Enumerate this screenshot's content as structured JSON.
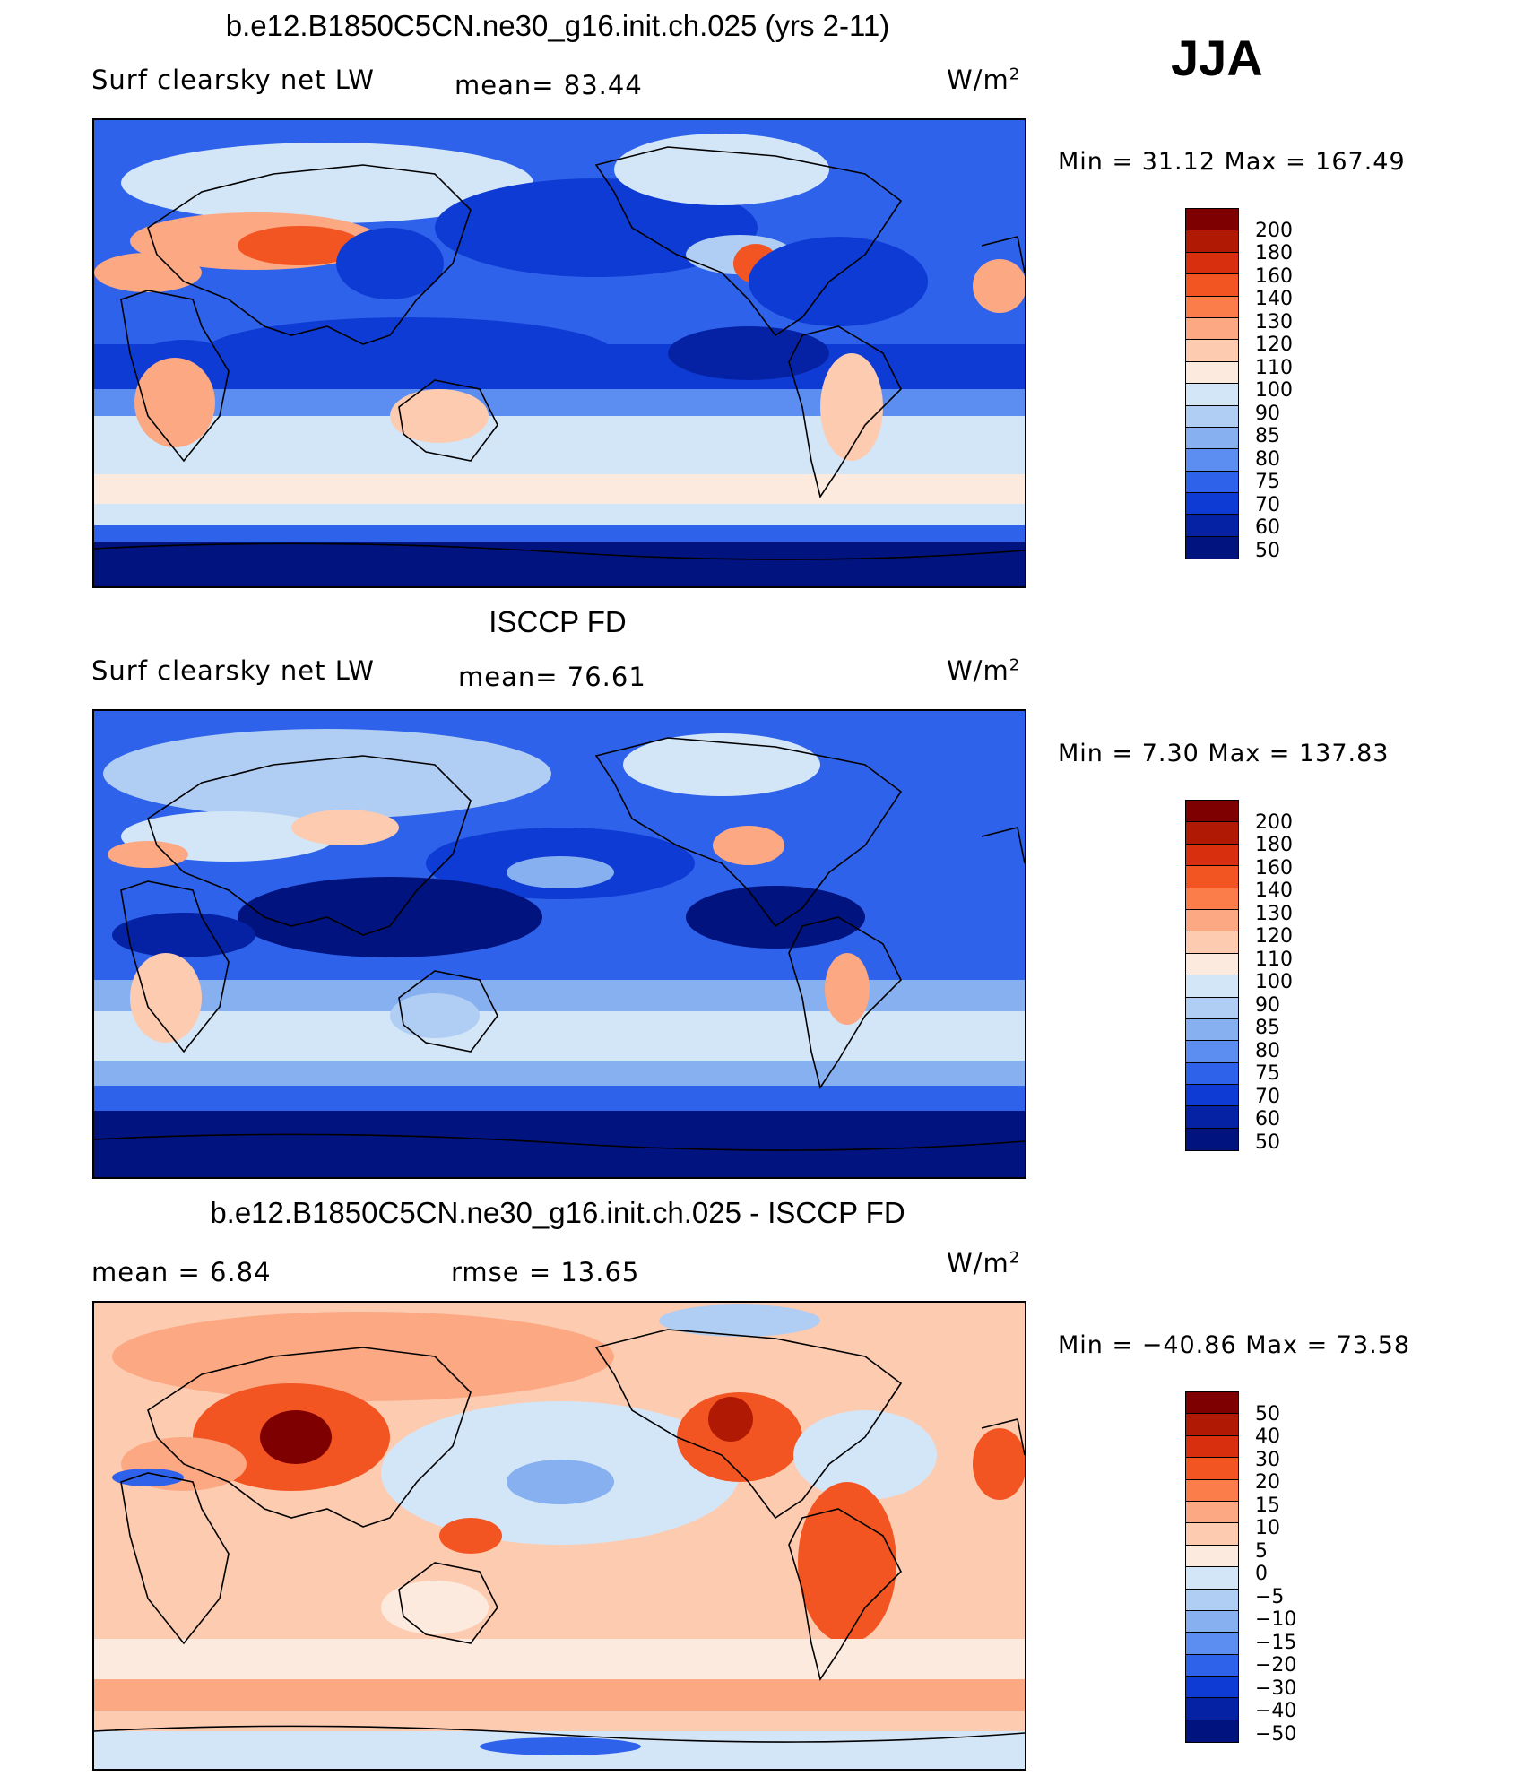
{
  "season": "JJA",
  "panels": [
    {
      "title": "b.e12.B1850C5CN.ne30_g16.init.ch.025 (yrs 2-11)",
      "subtitle_left": "Surf clearsky net LW",
      "subtitle_mid": "mean=  83.44",
      "units": "W/m",
      "units_sup": "2",
      "minmax": "Min =   31.12 Max = 167.49",
      "legend_labels": [
        "200",
        "180",
        "160",
        "140",
        "130",
        "120",
        "110",
        "100",
        "90",
        "85",
        "80",
        "75",
        "70",
        "60",
        "50"
      ],
      "legend_colors": [
        "#7f0000",
        "#b01a05",
        "#d8300f",
        "#f25522",
        "#fb7d4a",
        "#fba883",
        "#fdcbb0",
        "#fdeadf",
        "#d3e6f8",
        "#b0cdf3",
        "#86b0f0",
        "#5b8ef0",
        "#2f62ea",
        "#0f3bd5",
        "#0522a5",
        "#01137e"
      ]
    },
    {
      "title": "ISCCP FD",
      "subtitle_left": "Surf clearsky net LW",
      "subtitle_mid": "mean=  76.61",
      "units": "W/m",
      "units_sup": "2",
      "minmax": "Min =    7.30 Max = 137.83",
      "legend_labels": [
        "200",
        "180",
        "160",
        "140",
        "130",
        "120",
        "110",
        "100",
        "90",
        "85",
        "80",
        "75",
        "70",
        "60",
        "50"
      ],
      "legend_colors": [
        "#7f0000",
        "#b01a05",
        "#d8300f",
        "#f25522",
        "#fb7d4a",
        "#fba883",
        "#fdcbb0",
        "#fdeadf",
        "#d3e6f8",
        "#b0cdf3",
        "#86b0f0",
        "#5b8ef0",
        "#2f62ea",
        "#0f3bd5",
        "#0522a5",
        "#01137e"
      ]
    },
    {
      "title": "b.e12.B1850C5CN.ne30_g16.init.ch.025 - ISCCP FD",
      "subtitle_left": "mean =    6.84",
      "subtitle_mid": "rmse =   13.65",
      "units": "W/m",
      "units_sup": "2",
      "minmax": "Min = −40.86 Max =   73.58",
      "legend_labels": [
        "50",
        "40",
        "30",
        "20",
        "15",
        "10",
        "5",
        "0",
        "−5",
        "−10",
        "−15",
        "−20",
        "−30",
        "−40",
        "−50"
      ],
      "legend_colors": [
        "#7f0000",
        "#b01a05",
        "#d8300f",
        "#f25522",
        "#fb7d4a",
        "#fba883",
        "#fdcbb0",
        "#fdeadf",
        "#d3e6f8",
        "#b0cdf3",
        "#86b0f0",
        "#5b8ef0",
        "#2f62ea",
        "#0f3bd5",
        "#0522a5",
        "#01137e"
      ]
    }
  ]
}
